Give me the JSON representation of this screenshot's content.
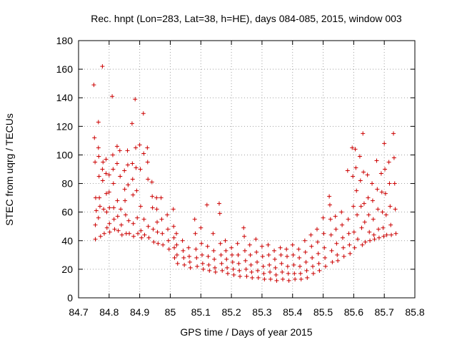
{
  "chart_data": {
    "type": "scatter",
    "title": "Rec. hnpt (Lon=283, Lat=38, h=HE), days 084-085, 2015, window 003",
    "xlabel": "GPS time / Days of year 2015",
    "ylabel": "STEC from uqrg / TECUs",
    "xlim": [
      84.7,
      85.8
    ],
    "ylim": [
      0,
      180
    ],
    "x_ticks": [
      "84.7",
      "84.8",
      "84.9",
      "85",
      "85.1",
      "85.2",
      "85.3",
      "85.4",
      "85.5",
      "85.6",
      "85.7",
      "85.8"
    ],
    "y_ticks": [
      "0",
      "20",
      "40",
      "60",
      "80",
      "100",
      "120",
      "140",
      "160",
      "180"
    ],
    "grid": true,
    "marker": "plus",
    "color": "#cc0000",
    "points": [
      [
        84.75,
        149
      ],
      [
        84.752,
        112
      ],
      [
        84.754,
        95
      ],
      [
        84.756,
        70
      ],
      [
        84.758,
        61
      ],
      [
        84.755,
        51
      ],
      [
        84.755,
        41
      ],
      [
        84.765,
        123
      ],
      [
        84.765,
        105
      ],
      [
        84.766,
        99
      ],
      [
        84.767,
        85
      ],
      [
        84.768,
        70
      ],
      [
        84.77,
        64
      ],
      [
        84.765,
        56
      ],
      [
        84.772,
        43
      ],
      [
        84.778,
        162
      ],
      [
        84.778,
        90
      ],
      [
        84.779,
        82
      ],
      [
        84.78,
        95
      ],
      [
        84.782,
        62
      ],
      [
        84.784,
        45
      ],
      [
        84.79,
        97
      ],
      [
        84.79,
        87
      ],
      [
        84.791,
        73
      ],
      [
        84.792,
        60
      ],
      [
        84.793,
        49
      ],
      [
        84.8,
        86
      ],
      [
        84.8,
        74
      ],
      [
        84.801,
        63
      ],
      [
        84.801,
        52
      ],
      [
        84.802,
        46
      ],
      [
        84.81,
        141
      ],
      [
        84.812,
        100
      ],
      [
        84.813,
        90
      ],
      [
        84.814,
        80
      ],
      [
        84.815,
        63
      ],
      [
        84.816,
        55
      ],
      [
        84.818,
        48
      ],
      [
        84.826,
        106
      ],
      [
        84.826,
        94
      ],
      [
        84.827,
        68
      ],
      [
        84.828,
        57
      ],
      [
        84.83,
        47
      ],
      [
        84.835,
        103
      ],
      [
        84.836,
        85
      ],
      [
        84.838,
        62
      ],
      [
        84.84,
        51
      ],
      [
        84.842,
        44
      ],
      [
        84.85,
        89
      ],
      [
        84.851,
        76
      ],
      [
        84.852,
        68
      ],
      [
        84.854,
        58
      ],
      [
        84.856,
        45
      ],
      [
        84.86,
        103
      ],
      [
        84.861,
        93
      ],
      [
        84.862,
        79
      ],
      [
        84.864,
        54
      ],
      [
        84.866,
        45
      ],
      [
        84.875,
        122
      ],
      [
        84.876,
        94
      ],
      [
        84.877,
        83
      ],
      [
        84.878,
        72
      ],
      [
        84.879,
        52
      ],
      [
        84.88,
        43
      ],
      [
        84.885,
        139
      ],
      [
        84.887,
        105
      ],
      [
        84.888,
        91
      ],
      [
        84.89,
        75
      ],
      [
        84.892,
        56
      ],
      [
        84.894,
        45
      ],
      [
        84.9,
        107
      ],
      [
        84.902,
        90
      ],
      [
        84.903,
        64
      ],
      [
        84.904,
        47
      ],
      [
        84.906,
        42
      ],
      [
        84.912,
        129
      ],
      [
        84.913,
        101
      ],
      [
        84.914,
        55
      ],
      [
        84.916,
        44
      ],
      [
        84.925,
        105
      ],
      [
        84.926,
        95
      ],
      [
        84.927,
        83
      ],
      [
        84.928,
        50
      ],
      [
        84.93,
        42
      ],
      [
        84.94,
        81
      ],
      [
        84.941,
        71
      ],
      [
        84.942,
        63
      ],
      [
        84.944,
        48
      ],
      [
        84.946,
        39
      ],
      [
        84.955,
        70
      ],
      [
        84.956,
        62
      ],
      [
        84.957,
        53
      ],
      [
        84.958,
        46
      ],
      [
        84.96,
        38
      ],
      [
        84.97,
        70
      ],
      [
        84.972,
        55
      ],
      [
        84.974,
        45
      ],
      [
        84.976,
        37
      ],
      [
        84.99,
        58
      ],
      [
        84.992,
        48
      ],
      [
        84.994,
        40
      ],
      [
        84.996,
        34
      ],
      [
        85.01,
        62
      ],
      [
        85.011,
        50
      ],
      [
        85.012,
        42
      ],
      [
        85.013,
        35
      ],
      [
        85.014,
        28
      ],
      [
        85.02,
        45
      ],
      [
        85.021,
        37
      ],
      [
        85.022,
        30
      ],
      [
        85.024,
        24
      ],
      [
        85.04,
        40
      ],
      [
        85.042,
        33
      ],
      [
        85.044,
        28
      ],
      [
        85.046,
        23
      ],
      [
        85.06,
        35
      ],
      [
        85.062,
        29
      ],
      [
        85.064,
        25
      ],
      [
        85.066,
        21
      ],
      [
        85.08,
        55
      ],
      [
        85.082,
        45
      ],
      [
        85.084,
        34
      ],
      [
        85.086,
        28
      ],
      [
        85.088,
        22
      ],
      [
        85.1,
        49
      ],
      [
        85.102,
        38
      ],
      [
        85.104,
        30
      ],
      [
        85.106,
        24
      ],
      [
        85.108,
        20
      ],
      [
        85.12,
        65
      ],
      [
        85.122,
        36
      ],
      [
        85.124,
        29
      ],
      [
        85.126,
        23
      ],
      [
        85.128,
        19
      ],
      [
        85.14,
        45
      ],
      [
        85.142,
        33
      ],
      [
        85.144,
        27
      ],
      [
        85.146,
        21
      ],
      [
        85.148,
        18
      ],
      [
        85.16,
        66
      ],
      [
        85.162,
        59
      ],
      [
        85.164,
        38
      ],
      [
        85.166,
        30
      ],
      [
        85.168,
        24
      ],
      [
        85.17,
        19
      ],
      [
        85.18,
        40
      ],
      [
        85.182,
        33
      ],
      [
        85.184,
        27
      ],
      [
        85.186,
        21
      ],
      [
        85.188,
        17
      ],
      [
        85.2,
        35
      ],
      [
        85.202,
        30
      ],
      [
        85.204,
        25
      ],
      [
        85.206,
        20
      ],
      [
        85.208,
        16
      ],
      [
        85.22,
        38
      ],
      [
        85.222,
        30
      ],
      [
        85.224,
        24
      ],
      [
        85.226,
        19
      ],
      [
        85.228,
        15
      ],
      [
        85.24,
        49
      ],
      [
        85.242,
        43
      ],
      [
        85.244,
        33
      ],
      [
        85.246,
        26
      ],
      [
        85.248,
        20
      ],
      [
        85.25,
        15
      ],
      [
        85.26,
        37
      ],
      [
        85.262,
        30
      ],
      [
        85.264,
        23
      ],
      [
        85.266,
        18
      ],
      [
        85.268,
        14
      ],
      [
        85.28,
        41
      ],
      [
        85.282,
        32
      ],
      [
        85.284,
        25
      ],
      [
        85.286,
        19
      ],
      [
        85.288,
        14
      ],
      [
        85.3,
        36
      ],
      [
        85.302,
        29
      ],
      [
        85.304,
        22
      ],
      [
        85.306,
        17
      ],
      [
        85.308,
        13
      ],
      [
        85.32,
        37
      ],
      [
        85.322,
        30
      ],
      [
        85.324,
        23
      ],
      [
        85.326,
        18
      ],
      [
        85.328,
        13
      ],
      [
        85.34,
        33
      ],
      [
        85.342,
        27
      ],
      [
        85.344,
        21
      ],
      [
        85.346,
        16
      ],
      [
        85.348,
        12
      ],
      [
        85.36,
        35
      ],
      [
        85.362,
        30
      ],
      [
        85.364,
        24
      ],
      [
        85.366,
        18
      ],
      [
        85.368,
        13
      ],
      [
        85.38,
        34
      ],
      [
        85.382,
        29
      ],
      [
        85.384,
        22
      ],
      [
        85.386,
        17
      ],
      [
        85.388,
        12
      ],
      [
        85.4,
        37
      ],
      [
        85.402,
        30
      ],
      [
        85.404,
        23
      ],
      [
        85.406,
        17
      ],
      [
        85.408,
        13
      ],
      [
        85.42,
        34
      ],
      [
        85.422,
        28
      ],
      [
        85.424,
        22
      ],
      [
        85.426,
        17
      ],
      [
        85.428,
        13
      ],
      [
        85.44,
        40
      ],
      [
        85.442,
        32
      ],
      [
        85.444,
        25
      ],
      [
        85.446,
        19
      ],
      [
        85.448,
        14
      ],
      [
        85.46,
        44
      ],
      [
        85.462,
        36
      ],
      [
        85.464,
        28
      ],
      [
        85.466,
        22
      ],
      [
        85.468,
        17
      ],
      [
        85.48,
        48
      ],
      [
        85.482,
        39
      ],
      [
        85.484,
        31
      ],
      [
        85.486,
        24
      ],
      [
        85.488,
        19
      ],
      [
        85.5,
        56
      ],
      [
        85.502,
        45
      ],
      [
        85.504,
        35
      ],
      [
        85.506,
        28
      ],
      [
        85.508,
        22
      ],
      [
        85.52,
        71
      ],
      [
        85.522,
        65
      ],
      [
        85.524,
        55
      ],
      [
        85.526,
        44
      ],
      [
        85.528,
        33
      ],
      [
        85.53,
        25
      ],
      [
        85.54,
        57
      ],
      [
        85.542,
        48
      ],
      [
        85.544,
        38
      ],
      [
        85.546,
        30
      ],
      [
        85.548,
        26
      ],
      [
        85.56,
        60
      ],
      [
        85.562,
        51
      ],
      [
        85.564,
        42
      ],
      [
        85.566,
        35
      ],
      [
        85.568,
        29
      ],
      [
        85.58,
        89
      ],
      [
        85.582,
        55
      ],
      [
        85.584,
        45
      ],
      [
        85.586,
        37
      ],
      [
        85.588,
        31
      ],
      [
        85.595,
        105
      ],
      [
        85.597,
        85
      ],
      [
        85.599,
        64
      ],
      [
        85.601,
        46
      ],
      [
        85.603,
        35
      ],
      [
        85.605,
        104
      ],
      [
        85.607,
        91
      ],
      [
        85.609,
        75
      ],
      [
        85.611,
        58
      ],
      [
        85.613,
        41
      ],
      [
        85.62,
        99
      ],
      [
        85.622,
        82
      ],
      [
        85.624,
        64
      ],
      [
        85.626,
        49
      ],
      [
        85.628,
        37
      ],
      [
        85.63,
        115
      ],
      [
        85.632,
        88
      ],
      [
        85.634,
        66
      ],
      [
        85.636,
        53
      ],
      [
        85.638,
        39
      ],
      [
        85.645,
        86
      ],
      [
        85.647,
        70
      ],
      [
        85.649,
        58
      ],
      [
        85.651,
        46
      ],
      [
        85.653,
        40
      ],
      [
        85.66,
        80
      ],
      [
        85.662,
        68
      ],
      [
        85.664,
        55
      ],
      [
        85.666,
        44
      ],
      [
        85.668,
        41
      ],
      [
        85.675,
        96
      ],
      [
        85.677,
        76
      ],
      [
        85.679,
        62
      ],
      [
        85.681,
        48
      ],
      [
        85.683,
        42
      ],
      [
        85.69,
        87
      ],
      [
        85.692,
        74
      ],
      [
        85.694,
        60
      ],
      [
        85.696,
        49
      ],
      [
        85.698,
        43
      ],
      [
        85.7,
        108
      ],
      [
        85.702,
        90
      ],
      [
        85.704,
        73
      ],
      [
        85.706,
        58
      ],
      [
        85.708,
        44
      ],
      [
        85.715,
        95
      ],
      [
        85.717,
        80
      ],
      [
        85.719,
        64
      ],
      [
        85.721,
        51
      ],
      [
        85.723,
        44
      ],
      [
        85.73,
        115
      ],
      [
        85.732,
        98
      ],
      [
        85.734,
        80
      ],
      [
        85.736,
        62
      ],
      [
        85.738,
        45
      ]
    ]
  }
}
